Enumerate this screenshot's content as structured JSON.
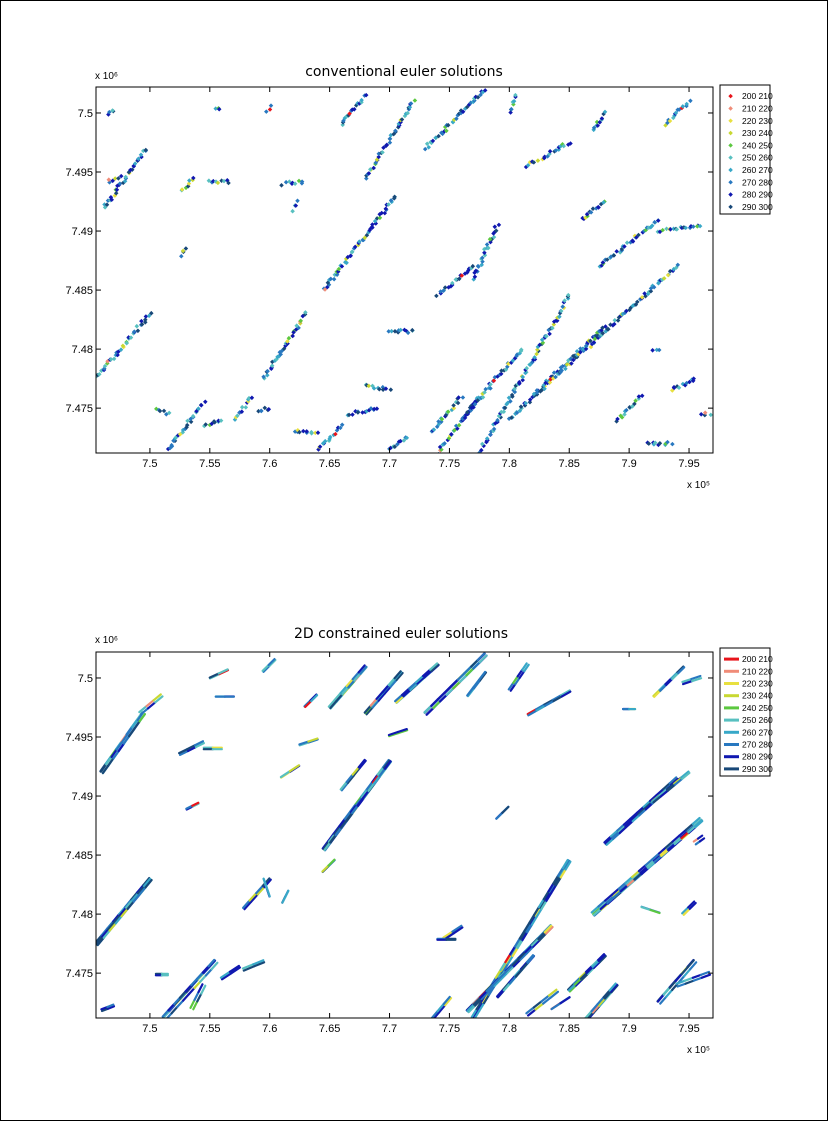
{
  "chart_data": [
    {
      "type": "scatter",
      "title": "conventional euler solutions",
      "x_multiplier": "x 10⁵",
      "y_multiplier": "x 10⁶",
      "xlim": [
        7.455,
        7.97
      ],
      "ylim": [
        7.4712,
        7.5022
      ],
      "xticks": [
        "7.5",
        "7.55",
        "7.6",
        "7.65",
        "7.7",
        "7.75",
        "7.8",
        "7.85",
        "7.9",
        "7.95"
      ],
      "yticks": [
        "7.475",
        "7.48",
        "7.485",
        "7.49",
        "7.495",
        "7.5"
      ],
      "legend_position": "outside-right",
      "legend_style": "marker",
      "series": [
        {
          "name": "200  210",
          "color": "#e8141b"
        },
        {
          "name": "210  220",
          "color": "#f08c78"
        },
        {
          "name": "220  230",
          "color": "#e8e040"
        },
        {
          "name": "230  240",
          "color": "#c8d832"
        },
        {
          "name": "240  250",
          "color": "#5cc840"
        },
        {
          "name": "250  260",
          "color": "#58c0c0"
        },
        {
          "name": "260  270",
          "color": "#38a8c8"
        },
        {
          "name": "270  280",
          "color": "#2878c0"
        },
        {
          "name": "280  290",
          "color": "#1018b0"
        },
        {
          "name": "290  300",
          "color": "#184878"
        }
      ],
      "features": [
        {
          "x0": 7.455,
          "y0": 7.4775,
          "x1": 7.5,
          "y1": 7.483
        },
        {
          "x0": 7.462,
          "y0": 7.492,
          "x1": 7.497,
          "y1": 7.497
        },
        {
          "x0": 7.464,
          "y0": 7.4998,
          "x1": 7.47,
          "y1": 7.5003
        },
        {
          "x0": 7.465,
          "y0": 7.4942,
          "x1": 7.475,
          "y1": 7.4946
        },
        {
          "x0": 7.526,
          "y0": 7.4935,
          "x1": 7.537,
          "y1": 7.4945
        },
        {
          "x0": 7.549,
          "y0": 7.4942,
          "x1": 7.566,
          "y1": 7.4942
        },
        {
          "x0": 7.527,
          "y0": 7.488,
          "x1": 7.53,
          "y1": 7.4886
        },
        {
          "x0": 7.515,
          "y0": 7.4715,
          "x1": 7.545,
          "y1": 7.4755
        },
        {
          "x0": 7.505,
          "y0": 7.475,
          "x1": 7.515,
          "y1": 7.4745
        },
        {
          "x0": 7.545,
          "y0": 7.4735,
          "x1": 7.56,
          "y1": 7.474
        },
        {
          "x0": 7.57,
          "y0": 7.474,
          "x1": 7.585,
          "y1": 7.476
        },
        {
          "x0": 7.595,
          "y0": 7.4775,
          "x1": 7.63,
          "y1": 7.483
        },
        {
          "x0": 7.611,
          "y0": 7.494,
          "x1": 7.628,
          "y1": 7.4942
        },
        {
          "x0": 7.62,
          "y0": 7.4918,
          "x1": 7.624,
          "y1": 7.4925
        },
        {
          "x0": 7.598,
          "y0": 7.5,
          "x1": 7.6,
          "y1": 7.5005
        },
        {
          "x0": 7.555,
          "y0": 7.5005,
          "x1": 7.557,
          "y1": 7.5003
        },
        {
          "x0": 7.645,
          "y0": 7.485,
          "x1": 7.705,
          "y1": 7.493
        },
        {
          "x0": 7.66,
          "y0": 7.499,
          "x1": 7.68,
          "y1": 7.5015
        },
        {
          "x0": 7.68,
          "y0": 7.4945,
          "x1": 7.72,
          "y1": 7.501
        },
        {
          "x0": 7.73,
          "y0": 7.497,
          "x1": 7.78,
          "y1": 7.502
        },
        {
          "x0": 7.7,
          "y0": 7.4815,
          "x1": 7.72,
          "y1": 7.4815
        },
        {
          "x0": 7.74,
          "y0": 7.4845,
          "x1": 7.77,
          "y1": 7.487
        },
        {
          "x0": 7.77,
          "y0": 7.486,
          "x1": 7.79,
          "y1": 7.4905
        },
        {
          "x0": 7.68,
          "y0": 7.477,
          "x1": 7.7,
          "y1": 7.4765
        },
        {
          "x0": 7.665,
          "y0": 7.4745,
          "x1": 7.69,
          "y1": 7.475
        },
        {
          "x0": 7.64,
          "y0": 7.4715,
          "x1": 7.66,
          "y1": 7.4735
        },
        {
          "x0": 7.7,
          "y0": 7.4715,
          "x1": 7.715,
          "y1": 7.4725
        },
        {
          "x0": 7.735,
          "y0": 7.473,
          "x1": 7.76,
          "y1": 7.476
        },
        {
          "x0": 7.74,
          "y0": 7.4712,
          "x1": 7.775,
          "y1": 7.476
        },
        {
          "x0": 7.76,
          "y0": 7.474,
          "x1": 7.81,
          "y1": 7.48
        },
        {
          "x0": 7.775,
          "y0": 7.4712,
          "x1": 7.85,
          "y1": 7.4845
        },
        {
          "x0": 7.8,
          "y0": 7.474,
          "x1": 7.88,
          "y1": 7.482
        },
        {
          "x0": 7.82,
          "y0": 7.476,
          "x1": 7.94,
          "y1": 7.487
        },
        {
          "x0": 7.875,
          "y0": 7.487,
          "x1": 7.925,
          "y1": 7.491
        },
        {
          "x0": 7.925,
          "y0": 7.49,
          "x1": 7.96,
          "y1": 7.4905
        },
        {
          "x0": 7.815,
          "y0": 7.4955,
          "x1": 7.85,
          "y1": 7.4975
        },
        {
          "x0": 7.8,
          "y0": 7.5,
          "x1": 7.805,
          "y1": 7.5015
        },
        {
          "x0": 7.87,
          "y0": 7.4985,
          "x1": 7.88,
          "y1": 7.5
        },
        {
          "x0": 7.93,
          "y0": 7.499,
          "x1": 7.95,
          "y1": 7.501
        },
        {
          "x0": 7.89,
          "y0": 7.474,
          "x1": 7.91,
          "y1": 7.476
        },
        {
          "x0": 7.935,
          "y0": 7.4765,
          "x1": 7.955,
          "y1": 7.4775
        },
        {
          "x0": 7.92,
          "y0": 7.48,
          "x1": 7.925,
          "y1": 7.48
        },
        {
          "x0": 7.915,
          "y0": 7.472,
          "x1": 7.935,
          "y1": 7.472
        },
        {
          "x0": 7.96,
          "y0": 7.4745,
          "x1": 7.967,
          "y1": 7.4745
        },
        {
          "x0": 7.86,
          "y0": 7.491,
          "x1": 7.88,
          "y1": 7.4925
        },
        {
          "x0": 7.62,
          "y0": 7.473,
          "x1": 7.64,
          "y1": 7.473
        },
        {
          "x0": 7.59,
          "y0": 7.4748,
          "x1": 7.6,
          "y1": 7.475
        }
      ]
    },
    {
      "type": "line",
      "title": "2D constrained euler solutions",
      "x_multiplier": "x 10⁵",
      "y_multiplier": "x 10⁶",
      "xlim": [
        7.455,
        7.97
      ],
      "ylim": [
        7.4712,
        7.5022
      ],
      "xticks": [
        "7.5",
        "7.55",
        "7.6",
        "7.65",
        "7.7",
        "7.75",
        "7.8",
        "7.85",
        "7.9",
        "7.95"
      ],
      "yticks": [
        "7.475",
        "7.48",
        "7.485",
        "7.49",
        "7.495",
        "7.5"
      ],
      "legend_position": "outside-right",
      "legend_style": "line",
      "series": [
        {
          "name": "200  210",
          "color": "#e8141b"
        },
        {
          "name": "210  220",
          "color": "#f08c78"
        },
        {
          "name": "220  230",
          "color": "#e8e040"
        },
        {
          "name": "230  240",
          "color": "#c8d832"
        },
        {
          "name": "240  250",
          "color": "#5cc840"
        },
        {
          "name": "250  260",
          "color": "#58c0c0"
        },
        {
          "name": "260  270",
          "color": "#38a8c8"
        },
        {
          "name": "270  280",
          "color": "#2878c0"
        },
        {
          "name": "280  290",
          "color": "#1018b0"
        },
        {
          "name": "290  300",
          "color": "#184878"
        }
      ],
      "features": [
        {
          "x0": 7.455,
          "y0": 7.4775,
          "x1": 7.5,
          "y1": 7.483
        },
        {
          "x0": 7.46,
          "y0": 7.492,
          "x1": 7.495,
          "y1": 7.497
        },
        {
          "x0": 7.46,
          "y0": 7.4718,
          "x1": 7.47,
          "y1": 7.4722
        },
        {
          "x0": 7.492,
          "y0": 7.497,
          "x1": 7.51,
          "y1": 7.4985
        },
        {
          "x0": 7.505,
          "y0": 7.475,
          "x1": 7.515,
          "y1": 7.475
        },
        {
          "x0": 7.512,
          "y0": 7.4712,
          "x1": 7.555,
          "y1": 7.476
        },
        {
          "x0": 7.535,
          "y0": 7.472,
          "x1": 7.545,
          "y1": 7.474
        },
        {
          "x0": 7.56,
          "y0": 7.4745,
          "x1": 7.575,
          "y1": 7.4755
        },
        {
          "x0": 7.578,
          "y0": 7.4753,
          "x1": 7.595,
          "y1": 7.476
        },
        {
          "x0": 7.525,
          "y0": 7.4935,
          "x1": 7.545,
          "y1": 7.4945
        },
        {
          "x0": 7.545,
          "y0": 7.494,
          "x1": 7.56,
          "y1": 7.494
        },
        {
          "x0": 7.53,
          "y0": 7.489,
          "x1": 7.54,
          "y1": 7.4895
        },
        {
          "x0": 7.55,
          "y0": 7.5,
          "x1": 7.565,
          "y1": 7.5007
        },
        {
          "x0": 7.555,
          "y0": 7.4985,
          "x1": 7.57,
          "y1": 7.4985
        },
        {
          "x0": 7.595,
          "y0": 7.5005,
          "x1": 7.605,
          "y1": 7.5015
        },
        {
          "x0": 7.578,
          "y0": 7.4805,
          "x1": 7.6,
          "y1": 7.483
        },
        {
          "x0": 7.595,
          "y0": 7.483,
          "x1": 7.6,
          "y1": 7.4815
        },
        {
          "x0": 7.61,
          "y0": 7.481,
          "x1": 7.615,
          "y1": 7.482
        },
        {
          "x0": 7.61,
          "y0": 7.4915,
          "x1": 7.625,
          "y1": 7.4925
        },
        {
          "x0": 7.625,
          "y0": 7.4943,
          "x1": 7.64,
          "y1": 7.4948
        },
        {
          "x0": 7.63,
          "y0": 7.4975,
          "x1": 7.64,
          "y1": 7.4985
        },
        {
          "x0": 7.645,
          "y0": 7.4855,
          "x1": 7.7,
          "y1": 7.493
        },
        {
          "x0": 7.65,
          "y0": 7.4975,
          "x1": 7.68,
          "y1": 7.501
        },
        {
          "x0": 7.66,
          "y0": 7.4905,
          "x1": 7.68,
          "y1": 7.493
        },
        {
          "x0": 7.645,
          "y0": 7.4835,
          "x1": 7.655,
          "y1": 7.4845
        },
        {
          "x0": 7.68,
          "y0": 7.497,
          "x1": 7.71,
          "y1": 7.5005
        },
        {
          "x0": 7.7,
          "y0": 7.495,
          "x1": 7.715,
          "y1": 7.4955
        },
        {
          "x0": 7.705,
          "y0": 7.498,
          "x1": 7.74,
          "y1": 7.5012
        },
        {
          "x0": 7.73,
          "y0": 7.497,
          "x1": 7.78,
          "y1": 7.502
        },
        {
          "x0": 7.765,
          "y0": 7.4985,
          "x1": 7.78,
          "y1": 7.5005
        },
        {
          "x0": 7.745,
          "y0": 7.478,
          "x1": 7.76,
          "y1": 7.479
        },
        {
          "x0": 7.74,
          "y0": 7.478,
          "x1": 7.755,
          "y1": 7.478
        },
        {
          "x0": 7.79,
          "y0": 7.488,
          "x1": 7.8,
          "y1": 7.489
        },
        {
          "x0": 7.735,
          "y0": 7.4712,
          "x1": 7.75,
          "y1": 7.473
        },
        {
          "x0": 7.77,
          "y0": 7.4712,
          "x1": 7.85,
          "y1": 7.4845
        },
        {
          "x0": 7.765,
          "y0": 7.4718,
          "x1": 7.835,
          "y1": 7.479
        },
        {
          "x0": 7.79,
          "y0": 7.473,
          "x1": 7.82,
          "y1": 7.4765
        },
        {
          "x0": 7.8,
          "y0": 7.499,
          "x1": 7.815,
          "y1": 7.5012
        },
        {
          "x0": 7.815,
          "y0": 7.497,
          "x1": 7.85,
          "y1": 7.499
        },
        {
          "x0": 7.815,
          "y0": 7.4715,
          "x1": 7.84,
          "y1": 7.4735
        },
        {
          "x0": 7.835,
          "y0": 7.472,
          "x1": 7.85,
          "y1": 7.473
        },
        {
          "x0": 7.85,
          "y0": 7.4735,
          "x1": 7.88,
          "y1": 7.4765
        },
        {
          "x0": 7.86,
          "y0": 7.4705,
          "x1": 7.89,
          "y1": 7.474
        },
        {
          "x0": 7.87,
          "y0": 7.48,
          "x1": 7.96,
          "y1": 7.488
        },
        {
          "x0": 7.88,
          "y0": 7.486,
          "x1": 7.94,
          "y1": 7.4915
        },
        {
          "x0": 7.92,
          "y0": 7.4895,
          "x1": 7.95,
          "y1": 7.492
        },
        {
          "x0": 7.895,
          "y0": 7.4975,
          "x1": 7.905,
          "y1": 7.4975
        },
        {
          "x0": 7.91,
          "y0": 7.4805,
          "x1": 7.925,
          "y1": 7.48
        },
        {
          "x0": 7.925,
          "y0": 7.4725,
          "x1": 7.955,
          "y1": 7.476
        },
        {
          "x0": 7.94,
          "y0": 7.474,
          "x1": 7.967,
          "y1": 7.475
        },
        {
          "x0": 7.92,
          "y0": 7.4985,
          "x1": 7.945,
          "y1": 7.501
        },
        {
          "x0": 7.945,
          "y0": 7.4995,
          "x1": 7.96,
          "y1": 7.5
        },
        {
          "x0": 7.955,
          "y0": 7.486,
          "x1": 7.962,
          "y1": 7.4865
        },
        {
          "x0": 7.945,
          "y0": 7.48,
          "x1": 7.955,
          "y1": 7.481
        }
      ]
    }
  ]
}
